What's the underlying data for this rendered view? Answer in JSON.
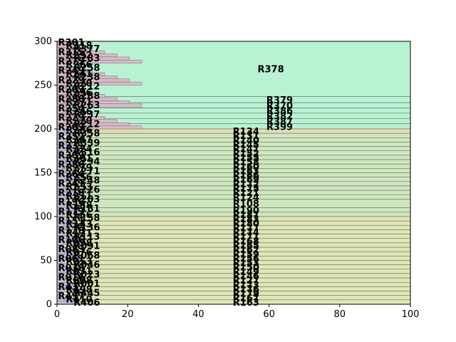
{
  "chart_data": {
    "type": "treemap",
    "title": "",
    "xlabel": "",
    "ylabel": "",
    "xlim": [
      0,
      100
    ],
    "ylim": [
      0,
      300
    ],
    "grid": false,
    "x_ticks": [
      "0",
      "20",
      "40",
      "60",
      "80",
      "100"
    ],
    "y_ticks": [
      "0",
      "50",
      "100",
      "150",
      "200",
      "250",
      "300"
    ],
    "colors": {
      "upper_green": "#b8f2d2",
      "lower_olive": "#dfe6b6",
      "band_tan": "#e6dcb4",
      "left_column": "#c8bddc",
      "left_column_upper": "#d8bcc8",
      "edge": "#5a5a5a"
    },
    "regions": [
      {
        "label": "R378",
        "x0": 0,
        "y0": 237,
        "x1": 100,
        "y1": 300
      },
      {
        "label": "R379",
        "x0": 0,
        "y0": 230,
        "x1": 100,
        "y1": 237
      },
      {
        "label": "R370",
        "x0": 0,
        "y0": 224,
        "x1": 100,
        "y1": 230
      },
      {
        "label": "R386",
        "x0": 0,
        "y0": 218,
        "x1": 100,
        "y1": 224
      },
      {
        "label": "R382",
        "x0": 0,
        "y0": 212,
        "x1": 100,
        "y1": 218
      },
      {
        "label": "R387",
        "x0": 0,
        "y0": 206,
        "x1": 100,
        "y1": 212
      },
      {
        "label": "R399",
        "x0": 0,
        "y0": 200,
        "x1": 100,
        "y1": 206
      },
      {
        "label": "R134",
        "x0": 0,
        "y0": 195,
        "x1": 100,
        "y1": 200
      },
      {
        "label": "R131",
        "x0": 0,
        "y0": 190,
        "x1": 100,
        "y1": 195
      },
      {
        "label": "R140",
        "x0": 0,
        "y0": 185,
        "x1": 100,
        "y1": 190
      },
      {
        "label": "R145",
        "x0": 0,
        "y0": 180,
        "x1": 100,
        "y1": 185
      },
      {
        "label": "R147",
        "x0": 0,
        "y0": 175,
        "x1": 100,
        "y1": 180
      },
      {
        "label": "R152",
        "x0": 0,
        "y0": 170,
        "x1": 100,
        "y1": 175
      },
      {
        "label": "R155",
        "x0": 0,
        "y0": 165,
        "x1": 100,
        "y1": 170
      },
      {
        "label": "R158",
        "x0": 0,
        "y0": 160,
        "x1": 100,
        "y1": 165
      },
      {
        "label": "R160",
        "x0": 0,
        "y0": 155,
        "x1": 100,
        "y1": 160
      },
      {
        "label": "R163",
        "x0": 0,
        "y0": 150,
        "x1": 100,
        "y1": 155
      },
      {
        "label": "R166",
        "x0": 0,
        "y0": 145,
        "x1": 100,
        "y1": 150
      },
      {
        "label": "R169",
        "x0": 0,
        "y0": 140,
        "x1": 100,
        "y1": 145
      },
      {
        "label": "R172",
        "x0": 0,
        "y0": 135,
        "x1": 100,
        "y1": 140
      },
      {
        "label": "R175",
        "x0": 0,
        "y0": 130,
        "x1": 100,
        "y1": 135
      },
      {
        "label": "R121",
        "x0": 0,
        "y0": 125,
        "x1": 100,
        "y1": 130
      },
      {
        "label": "R124",
        "x0": 0,
        "y0": 120,
        "x1": 100,
        "y1": 125
      },
      {
        "label": "R108",
        "x0": 0,
        "y0": 110,
        "x1": 100,
        "y1": 120
      },
      {
        "label": "R190",
        "x0": 0,
        "y0": 105,
        "x1": 100,
        "y1": 110
      },
      {
        "label": "R187",
        "x0": 0,
        "y0": 100,
        "x1": 100,
        "y1": 105
      },
      {
        "label": "R183",
        "x0": 0,
        "y0": 95,
        "x1": 100,
        "y1": 100
      },
      {
        "label": "R180",
        "x0": 0,
        "y0": 90,
        "x1": 100,
        "y1": 95
      },
      {
        "label": "R177",
        "x0": 0,
        "y0": 85,
        "x1": 100,
        "y1": 90
      },
      {
        "label": "R174",
        "x0": 0,
        "y0": 80,
        "x1": 100,
        "y1": 85
      },
      {
        "label": "R171",
        "x0": 0,
        "y0": 75,
        "x1": 100,
        "y1": 80
      },
      {
        "label": "R168",
        "x0": 0,
        "y0": 70,
        "x1": 100,
        "y1": 75
      },
      {
        "label": "R165",
        "x0": 0,
        "y0": 65,
        "x1": 100,
        "y1": 70
      },
      {
        "label": "R162",
        "x0": 0,
        "y0": 60,
        "x1": 100,
        "y1": 65
      },
      {
        "label": "R159",
        "x0": 0,
        "y0": 55,
        "x1": 100,
        "y1": 60
      },
      {
        "label": "R156",
        "x0": 0,
        "y0": 50,
        "x1": 100,
        "y1": 55
      },
      {
        "label": "R153",
        "x0": 0,
        "y0": 45,
        "x1": 100,
        "y1": 50
      },
      {
        "label": "R150",
        "x0": 0,
        "y0": 40,
        "x1": 100,
        "y1": 45
      },
      {
        "label": "R149",
        "x0": 0,
        "y0": 35,
        "x1": 100,
        "y1": 40
      },
      {
        "label": "R146",
        "x0": 0,
        "y0": 30,
        "x1": 100,
        "y1": 35
      },
      {
        "label": "R127",
        "x0": 0,
        "y0": 25,
        "x1": 100,
        "y1": 30
      },
      {
        "label": "R173",
        "x0": 0,
        "y0": 20,
        "x1": 100,
        "y1": 25
      },
      {
        "label": "R176",
        "x0": 0,
        "y0": 15,
        "x1": 100,
        "y1": 20
      },
      {
        "label": "R179",
        "x0": 0,
        "y0": 10,
        "x1": 100,
        "y1": 15
      },
      {
        "label": "R167",
        "x0": 0,
        "y0": 5,
        "x1": 100,
        "y1": 10
      },
      {
        "label": "R163",
        "x0": 0,
        "y0": 0,
        "x1": 100,
        "y1": 5
      }
    ],
    "left_labels": [
      "R301",
      "R318",
      "R377",
      "R315",
      "R292",
      "R283",
      "R275",
      "R266",
      "R258",
      "R249",
      "R241",
      "R238",
      "R229",
      "R220",
      "R212",
      "R203",
      "R296",
      "R288",
      "R280",
      "R271",
      "R263",
      "R254",
      "R246",
      "R237",
      "R229",
      "R220",
      "R212",
      "R203",
      "R286",
      "R358",
      "R352",
      "R347",
      "R339",
      "R331",
      "R324",
      "R316",
      "R309",
      "R301",
      "R294",
      "R286",
      "R279",
      "R271",
      "R264",
      "R256",
      "R248",
      "R241",
      "R233",
      "R226",
      "R218",
      "R211",
      "R203",
      "R196",
      "R188",
      "R181",
      "R173",
      "R166",
      "R158",
      "R151",
      "R143",
      "R136",
      "R128",
      "R121",
      "R113",
      "R106",
      "R098",
      "R091",
      "R083",
      "R076",
      "R068",
      "R061",
      "R053",
      "R046",
      "R038",
      "R031",
      "R023",
      "R016",
      "R008",
      "R001",
      "R437",
      "R498",
      "R445",
      "R497",
      "R410",
      "R406"
    ]
  }
}
